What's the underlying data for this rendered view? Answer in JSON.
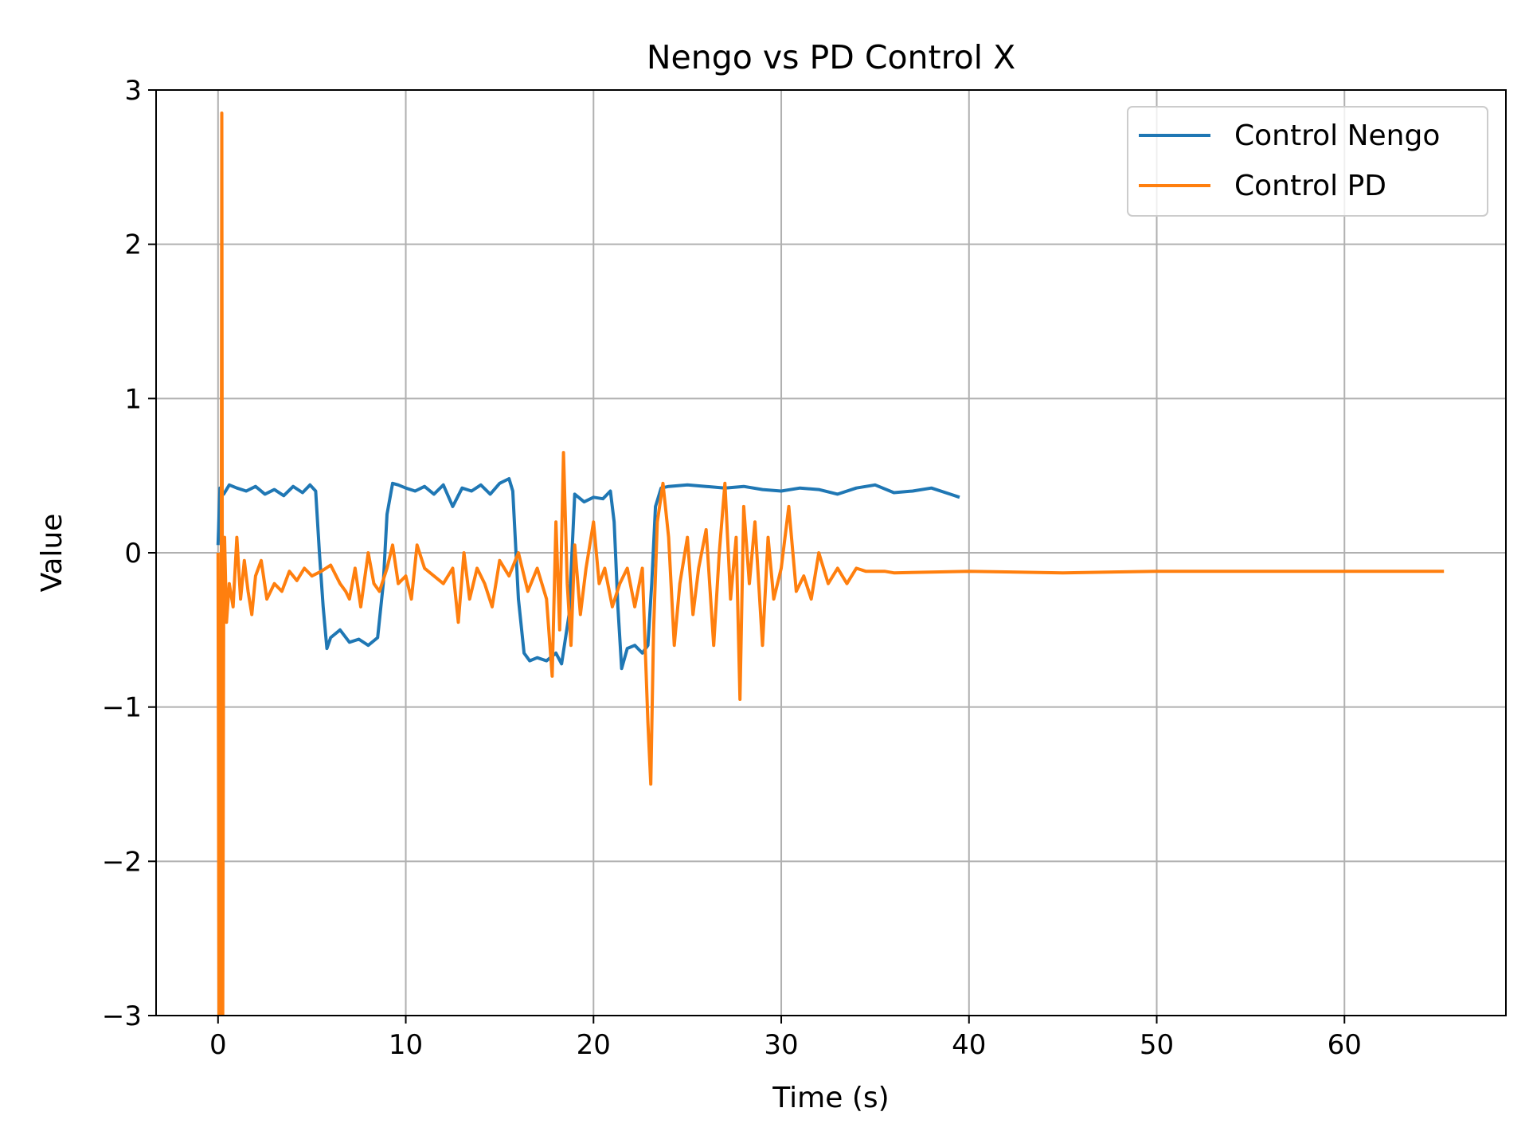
{
  "chart_data": {
    "type": "line",
    "title": "Nengo vs PD Control X",
    "xlabel": "Time (s)",
    "ylabel": "Value",
    "xlim": [
      -3.3,
      68.6
    ],
    "ylim": [
      -3,
      3
    ],
    "xticks": [
      0,
      10,
      20,
      30,
      40,
      50,
      60
    ],
    "yticks": [
      -3,
      -2,
      -1,
      0,
      1,
      2,
      3
    ],
    "xtick_labels": [
      "0",
      "10",
      "20",
      "30",
      "40",
      "50",
      "60"
    ],
    "ytick_labels": [
      "−3",
      "−2",
      "−1",
      "0",
      "1",
      "2",
      "3"
    ],
    "grid": true,
    "legend_position": "top-right",
    "series": [
      {
        "name": "Control Nengo",
        "color": "#1f77b4",
        "x": [
          0,
          0.1,
          0.3,
          0.6,
          1.0,
          1.5,
          2.0,
          2.5,
          3.0,
          3.5,
          4.0,
          4.5,
          4.9,
          5.2,
          5.4,
          5.6,
          5.8,
          6.0,
          6.5,
          7.0,
          7.5,
          8.0,
          8.5,
          8.8,
          9.0,
          9.3,
          9.6,
          10.0,
          10.5,
          11.0,
          11.5,
          12.0,
          12.5,
          13.0,
          13.5,
          14.0,
          14.5,
          15.0,
          15.5,
          15.7,
          16.0,
          16.3,
          16.6,
          17.0,
          17.5,
          18.0,
          18.3,
          18.7,
          19.0,
          19.5,
          20.0,
          20.5,
          20.9,
          21.1,
          21.3,
          21.5,
          21.8,
          22.2,
          22.6,
          22.9,
          23.1,
          23.3,
          23.6,
          24.0,
          25.0,
          26.0,
          27.0,
          28.0,
          29.0,
          30.0,
          31.0,
          32.0,
          33.0,
          34.0,
          35.0,
          36.0,
          37.0,
          38.0,
          39.0,
          39.5
        ],
        "y": [
          0.05,
          0.42,
          0.38,
          0.44,
          0.42,
          0.4,
          0.43,
          0.38,
          0.41,
          0.37,
          0.43,
          0.39,
          0.44,
          0.4,
          0.0,
          -0.35,
          -0.62,
          -0.55,
          -0.5,
          -0.58,
          -0.56,
          -0.6,
          -0.55,
          -0.2,
          0.25,
          0.45,
          0.44,
          0.42,
          0.4,
          0.43,
          0.38,
          0.44,
          0.3,
          0.42,
          0.4,
          0.44,
          0.38,
          0.45,
          0.48,
          0.4,
          -0.3,
          -0.65,
          -0.7,
          -0.68,
          -0.7,
          -0.65,
          -0.72,
          -0.4,
          0.38,
          0.33,
          0.36,
          0.35,
          0.4,
          0.2,
          -0.35,
          -0.75,
          -0.62,
          -0.6,
          -0.65,
          -0.6,
          -0.2,
          0.3,
          0.42,
          0.43,
          0.44,
          0.43,
          0.42,
          0.43,
          0.41,
          0.4,
          0.42,
          0.41,
          0.38,
          0.42,
          0.44,
          0.39,
          0.4,
          0.42,
          0.38,
          0.36
        ]
      },
      {
        "name": "Control PD",
        "color": "#ff7f0e",
        "x": [
          0,
          0.05,
          0.15,
          0.2,
          0.25,
          0.3,
          0.35,
          0.45,
          0.6,
          0.8,
          1.0,
          1.2,
          1.4,
          1.6,
          1.8,
          2.0,
          2.3,
          2.6,
          3.0,
          3.4,
          3.8,
          4.2,
          4.6,
          5.0,
          5.5,
          6.0,
          6.5,
          6.8,
          7.0,
          7.3,
          7.6,
          8.0,
          8.3,
          8.6,
          9.0,
          9.3,
          9.6,
          10.0,
          10.3,
          10.6,
          11.0,
          11.5,
          12.0,
          12.5,
          12.8,
          13.1,
          13.4,
          13.8,
          14.2,
          14.6,
          15.0,
          15.5,
          16.0,
          16.5,
          17.0,
          17.5,
          17.8,
          18.0,
          18.2,
          18.4,
          18.6,
          18.8,
          19.0,
          19.3,
          19.6,
          20.0,
          20.3,
          20.6,
          21.0,
          21.4,
          21.8,
          22.2,
          22.6,
          22.9,
          23.05,
          23.2,
          23.4,
          23.7,
          24.0,
          24.3,
          24.6,
          25.0,
          25.3,
          25.6,
          26.0,
          26.4,
          26.7,
          27.0,
          27.3,
          27.6,
          27.8,
          28.0,
          28.3,
          28.6,
          29.0,
          29.3,
          29.6,
          30.0,
          30.4,
          30.8,
          31.2,
          31.6,
          32.0,
          32.5,
          33.0,
          33.5,
          34.0,
          34.5,
          35.0,
          35.5,
          36.0,
          40.0,
          45.0,
          50.0,
          55.0,
          60.0,
          65.3
        ],
        "y": [
          0.0,
          -3.0,
          -3.0,
          2.85,
          -3.0,
          -0.3,
          0.1,
          -0.45,
          -0.2,
          -0.35,
          0.1,
          -0.3,
          -0.05,
          -0.25,
          -0.4,
          -0.15,
          -0.05,
          -0.3,
          -0.2,
          -0.25,
          -0.12,
          -0.18,
          -0.1,
          -0.15,
          -0.12,
          -0.08,
          -0.2,
          -0.25,
          -0.3,
          -0.1,
          -0.35,
          0.0,
          -0.2,
          -0.25,
          -0.1,
          0.05,
          -0.2,
          -0.15,
          -0.3,
          0.05,
          -0.1,
          -0.15,
          -0.2,
          -0.1,
          -0.45,
          0.0,
          -0.3,
          -0.1,
          -0.2,
          -0.35,
          -0.05,
          -0.15,
          0.0,
          -0.25,
          -0.1,
          -0.3,
          -0.8,
          0.2,
          -0.5,
          0.65,
          -0.2,
          -0.6,
          0.05,
          -0.4,
          -0.1,
          0.2,
          -0.2,
          -0.1,
          -0.35,
          -0.2,
          -0.1,
          -0.35,
          -0.1,
          -1.1,
          -1.5,
          -0.5,
          0.2,
          0.45,
          0.1,
          -0.6,
          -0.2,
          0.1,
          -0.4,
          -0.1,
          0.15,
          -0.6,
          0.0,
          0.45,
          -0.3,
          0.1,
          -0.95,
          0.3,
          -0.2,
          0.2,
          -0.6,
          0.1,
          -0.3,
          -0.1,
          0.3,
          -0.25,
          -0.15,
          -0.3,
          0.0,
          -0.2,
          -0.1,
          -0.2,
          -0.1,
          -0.12,
          -0.12,
          -0.12,
          -0.13,
          -0.12,
          -0.13,
          -0.12,
          -0.12,
          -0.12,
          -0.12
        ]
      }
    ]
  }
}
